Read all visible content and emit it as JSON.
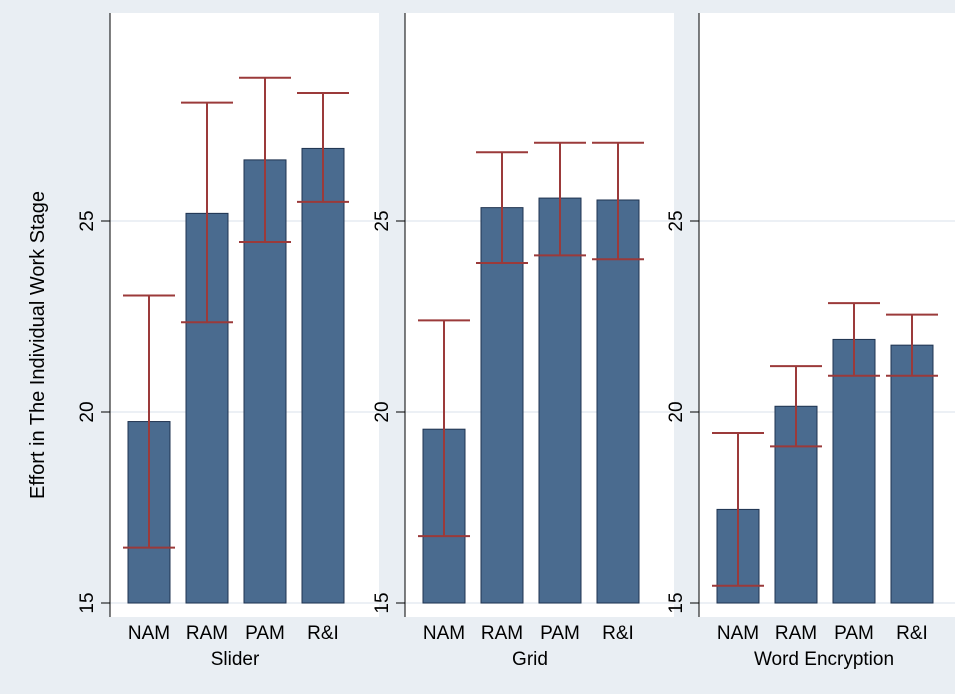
{
  "chart_data": {
    "type": "bar",
    "ylabel": "Effort in The Individual Work Stage",
    "ylim": [
      15,
      30.4
    ],
    "yticks": [
      15,
      20,
      25
    ],
    "grid": true,
    "error_bars": true,
    "colors": {
      "background": "#e9eef3",
      "plot_background": "#ffffff",
      "bar": "#4a6b8f",
      "error_bar": "#9b3a3a",
      "grid": "#e6ecf2"
    },
    "panels": [
      {
        "label": "Slider",
        "categories": [
          "NAM",
          "RAM",
          "PAM",
          "R&I"
        ],
        "values": [
          19.75,
          25.2,
          26.6,
          26.9
        ],
        "ci_low": [
          16.45,
          22.35,
          24.45,
          25.5
        ],
        "ci_high": [
          23.05,
          28.1,
          28.75,
          28.35
        ]
      },
      {
        "label": "Grid",
        "categories": [
          "NAM",
          "RAM",
          "PAM",
          "R&I"
        ],
        "values": [
          19.55,
          25.35,
          25.6,
          25.55
        ],
        "ci_low": [
          16.75,
          23.9,
          24.1,
          24.0
        ],
        "ci_high": [
          22.4,
          26.8,
          27.05,
          27.05
        ]
      },
      {
        "label": "Word Encryption",
        "categories": [
          "NAM",
          "RAM",
          "PAM",
          "R&I"
        ],
        "values": [
          17.45,
          20.15,
          21.9,
          21.75
        ],
        "ci_low": [
          15.45,
          19.1,
          20.95,
          20.95
        ],
        "ci_high": [
          19.45,
          21.2,
          22.85,
          22.55
        ]
      }
    ]
  }
}
